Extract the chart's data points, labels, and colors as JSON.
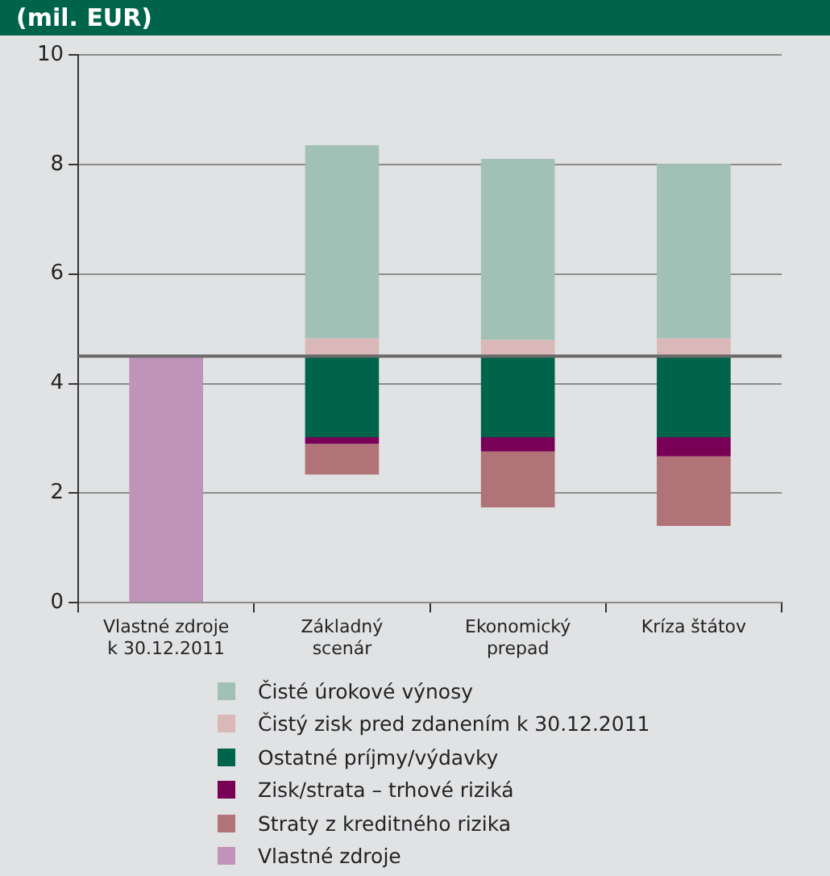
{
  "chart_data": {
    "type": "bar",
    "title": "(mil. EUR)",
    "categories": [
      "Vlastné zdroje\nk 30.12.2011",
      "Základný\nscenár",
      "Ekonomický\nprepad",
      "Kríza štátov"
    ],
    "series": [
      {
        "name": "Čisté úrokové výnosy",
        "color": "#a2c1b6",
        "base": [
          null,
          4.83,
          4.8,
          4.83
        ],
        "values": [
          null,
          3.52,
          3.3,
          3.18
        ]
      },
      {
        "name": "Čistý zisk pred zdanením k 30.12.2011",
        "color": "#d9b8b7",
        "base": [
          null,
          4.5,
          4.5,
          4.5
        ],
        "values": [
          null,
          0.33,
          0.3,
          0.33
        ]
      },
      {
        "name": "Ostatné príjmy/výdavky",
        "color": "#00644a",
        "base": [
          null,
          3.02,
          3.02,
          3.02
        ],
        "values": [
          null,
          1.48,
          1.48,
          1.48
        ]
      },
      {
        "name": "Zisk/strata – trhové riziká",
        "color": "#780055",
        "base": [
          null,
          2.9,
          2.76,
          2.67
        ],
        "values": [
          null,
          0.12,
          0.26,
          0.35
        ]
      },
      {
        "name": "Straty z kreditného rizika",
        "color": "#b07377",
        "base": [
          null,
          2.34,
          1.74,
          1.4
        ],
        "values": [
          null,
          0.56,
          1.02,
          1.27
        ]
      },
      {
        "name": "Vlastné zdroje",
        "color": "#c093b9",
        "base": [
          0,
          null,
          null,
          null
        ],
        "values": [
          4.5,
          null,
          null,
          null
        ]
      }
    ],
    "ylim": [
      0,
      10
    ],
    "yticks": [
      0,
      2,
      4,
      6,
      8,
      10
    ],
    "grid": "y",
    "legend": "bottom",
    "ref_lines": [
      {
        "axis": "y",
        "value": 4.5,
        "color": "#6b6b6b"
      }
    ]
  }
}
